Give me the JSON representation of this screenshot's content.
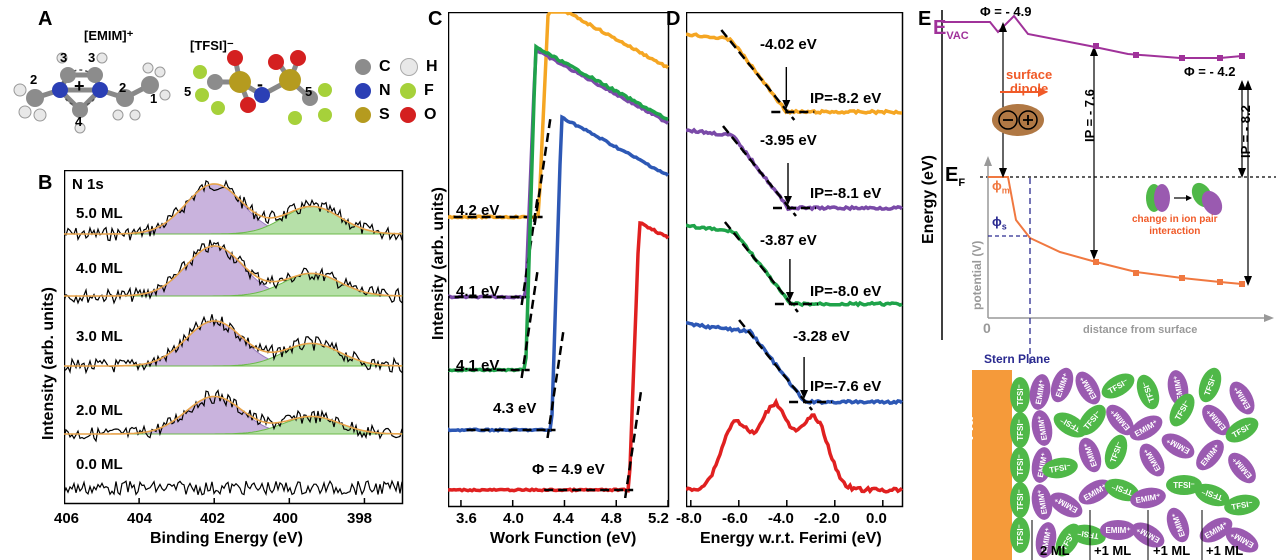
{
  "panels": {
    "A": {
      "letter": "A",
      "emim_label": "[EMIM]⁺",
      "tfsi_label": "[TFSI]⁻",
      "plus": "+",
      "minus": "-",
      "atom_numbers": [
        "2",
        "3",
        "3",
        "2",
        "1",
        "4",
        "5",
        "5"
      ],
      "legend": [
        {
          "symbol": "C",
          "color": "#8c8c8c"
        },
        {
          "symbol": "H",
          "color": "#e8e8e8"
        },
        {
          "symbol": "N",
          "color": "#2b3fb5"
        },
        {
          "symbol": "F",
          "color": "#a6d13a"
        },
        {
          "symbol": "S",
          "color": "#b59b1f"
        },
        {
          "symbol": "O",
          "color": "#d42020"
        }
      ]
    },
    "B": {
      "letter": "B",
      "core_level": "N 1s",
      "xlabel": "Binding Energy (eV)",
      "ylabel": "Intensity (arb. units)",
      "x_ticks": [
        "406",
        "404",
        "402",
        "400",
        "398"
      ],
      "coverages": [
        "5.0 ML",
        "4.0 ML",
        "3.0 ML",
        "2.0 ML",
        "0.0 ML"
      ],
      "peak_colors": {
        "cation": "#c9b3dd",
        "anion": "#b6e0a8",
        "envelope": "#e8a44a"
      }
    },
    "C": {
      "letter": "C",
      "xlabel": "Work Function (eV)",
      "ylabel": "Intensity (arb. units)",
      "x_ticks": [
        "3.6",
        "4.0",
        "4.4",
        "4.8",
        "5.2"
      ],
      "cutoff_labels": [
        "4.2 eV",
        "4.1 eV",
        "4.1 eV",
        "4.3 eV",
        "Φ = 4.9 eV"
      ]
    },
    "D": {
      "letter": "D",
      "xlabel": "Energy w.r.t. Ferimi (eV)",
      "x_ticks": [
        "-8.0",
        "-6.0",
        "-4.0",
        "-2.0",
        "0.0"
      ],
      "onset_labels": [
        "-4.02 eV",
        "-3.95 eV",
        "-3.87 eV",
        "-3.28 eV"
      ],
      "ip_labels": [
        "IP=-8.2 eV",
        "IP=-8.1 eV",
        "IP=-8.0 eV",
        "IP=-7.6 eV"
      ]
    },
    "E": {
      "letter": "E",
      "evac": "E",
      "evac_sub": "VAC",
      "ef": "E",
      "ef_sub": "F",
      "phi_left": "Φ = - 4.9",
      "phi_right": "Φ = - 4.2",
      "ip_left": "IP = - 7.6",
      "ip_right": "IP = - 8.2",
      "surface_dipole": "surface\ndipole",
      "ylabel": "Energy (eV)",
      "potential_label": "potential (V)",
      "phi_m": "ϕ",
      "phi_m_sub": "m",
      "phi_s": "ϕ",
      "phi_s_sub": "s",
      "ion_pair": "change in ion pair\ninteraction",
      "distance": "distance from surface",
      "zero": "0",
      "stern": "Stern Plane",
      "au": "Au",
      "layers": [
        "2 ML",
        "+1 ML",
        "+1 ML",
        "+1 ML"
      ],
      "ions": {
        "tfsi": "TFSI⁻",
        "emim": "EMIM⁺"
      },
      "colors": {
        "vac_line": "#a0329a",
        "pot_line": "#f07840",
        "au": "#f59a3a",
        "tfsi": "#4fb848",
        "emim": "#9a5ab0",
        "stern": "#2a2a90"
      }
    }
  },
  "chart_data": [
    {
      "type": "line",
      "title": "",
      "panel": "B",
      "xlabel": "Binding Energy (eV)",
      "ylabel": "Intensity (arb. units)",
      "xlim": [
        406,
        397
      ],
      "series": [
        {
          "name": "5.0 ML",
          "cation_peak": 402.0,
          "anion_peak": 399.4,
          "cation_height": 1.0,
          "anion_height": 0.55
        },
        {
          "name": "4.0 ML",
          "cation_peak": 402.0,
          "anion_peak": 399.4,
          "cation_height": 1.0,
          "anion_height": 0.45
        },
        {
          "name": "3.0 ML",
          "cation_peak": 402.0,
          "anion_peak": 399.4,
          "cation_height": 0.9,
          "anion_height": 0.45
        },
        {
          "name": "2.0 ML",
          "cation_peak": 402.0,
          "anion_peak": 399.4,
          "cation_height": 0.75,
          "anion_height": 0.35
        },
        {
          "name": "0.0 ML",
          "cation_peak": 402.0,
          "anion_peak": 399.4,
          "cation_height": 0,
          "anion_height": 0
        }
      ]
    },
    {
      "type": "line",
      "title": "",
      "panel": "C",
      "xlabel": "Work Function (eV)",
      "ylabel": "Intensity (arb. units)",
      "xlim": [
        3.5,
        5.2
      ],
      "series": [
        {
          "name": "5.0 ML",
          "cutoff": 4.2,
          "color": "#f5a623"
        },
        {
          "name": "4.0 ML",
          "cutoff": 4.1,
          "color": "#7a4aa8"
        },
        {
          "name": "3.0 ML",
          "cutoff": 4.1,
          "color": "#1fa34a"
        },
        {
          "name": "2.0 ML",
          "cutoff": 4.3,
          "color": "#2d58b5"
        },
        {
          "name": "0.0 ML",
          "cutoff": 4.9,
          "color": "#e02020"
        }
      ]
    },
    {
      "type": "line",
      "title": "",
      "panel": "D",
      "xlabel": "Energy w.r.t. Ferimi (eV)",
      "xlim": [
        -8.2,
        0.8
      ],
      "series": [
        {
          "name": "5.0 ML",
          "onset": -4.02,
          "ip": -8.2,
          "color": "#f5a623"
        },
        {
          "name": "4.0 ML",
          "onset": -3.95,
          "ip": -8.1,
          "color": "#7a4aa8"
        },
        {
          "name": "3.0 ML",
          "onset": -3.87,
          "ip": -8.0,
          "color": "#1fa34a"
        },
        {
          "name": "2.0 ML",
          "onset": -3.28,
          "ip": -7.6,
          "color": "#2d58b5"
        },
        {
          "name": "0.0 ML",
          "onset": null,
          "ip": null,
          "color": "#e02020"
        }
      ]
    }
  ]
}
